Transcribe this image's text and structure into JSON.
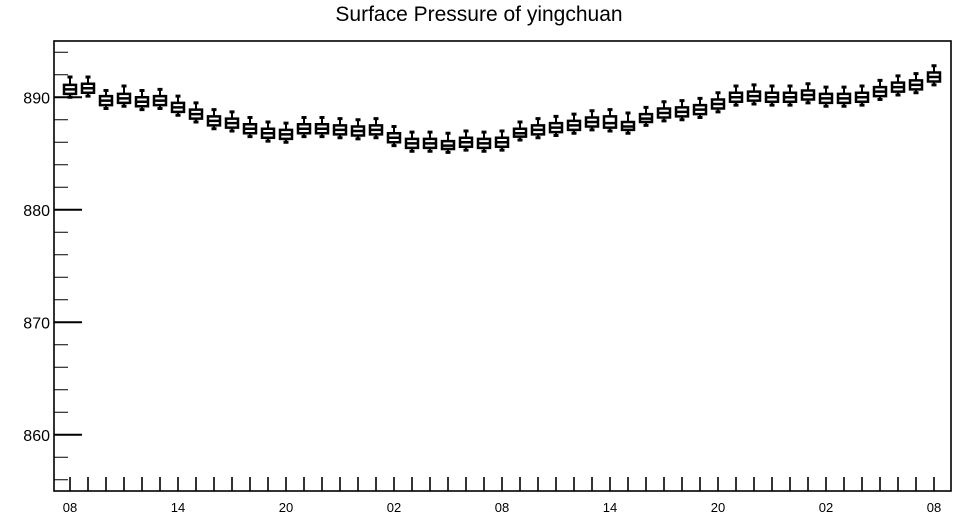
{
  "chart_data": {
    "type": "boxplot",
    "title": "Surface Pressure of yingchuan",
    "xlabel": "",
    "ylabel": "",
    "ylim": [
      855,
      895
    ],
    "yticks": [
      860,
      870,
      880,
      890
    ],
    "xtick_labels": [
      "08",
      "14",
      "20",
      "02",
      "08",
      "14",
      "20",
      "02",
      "08"
    ],
    "x_hours": [
      0,
      48
    ],
    "series": [
      {
        "values": [
          {
            "hour": 0,
            "min": 890.0,
            "q1": 890.3,
            "median": 890.7,
            "q3": 891.1,
            "max": 891.8
          },
          {
            "hour": 1,
            "min": 890.1,
            "q1": 890.4,
            "median": 890.8,
            "q3": 891.2,
            "max": 891.8
          },
          {
            "hour": 2,
            "min": 889.0,
            "q1": 889.3,
            "median": 889.7,
            "q3": 890.1,
            "max": 890.6
          },
          {
            "hour": 3,
            "min": 889.2,
            "q1": 889.5,
            "median": 889.9,
            "q3": 890.3,
            "max": 891.0
          },
          {
            "hour": 4,
            "min": 888.9,
            "q1": 889.2,
            "median": 889.6,
            "q3": 890.0,
            "max": 890.6
          },
          {
            "hour": 5,
            "min": 889.0,
            "q1": 889.3,
            "median": 889.7,
            "q3": 890.1,
            "max": 890.7
          },
          {
            "hour": 6,
            "min": 888.4,
            "q1": 888.7,
            "median": 889.1,
            "q3": 889.5,
            "max": 890.1
          },
          {
            "hour": 7,
            "min": 887.8,
            "q1": 888.1,
            "median": 888.5,
            "q3": 888.9,
            "max": 889.5
          },
          {
            "hour": 8,
            "min": 887.2,
            "q1": 887.5,
            "median": 887.9,
            "q3": 888.3,
            "max": 888.9
          },
          {
            "hour": 9,
            "min": 887.0,
            "q1": 887.3,
            "median": 887.7,
            "q3": 888.1,
            "max": 888.7
          },
          {
            "hour": 10,
            "min": 886.5,
            "q1": 886.8,
            "median": 887.2,
            "q3": 887.6,
            "max": 888.2
          },
          {
            "hour": 11,
            "min": 886.1,
            "q1": 886.4,
            "median": 886.8,
            "q3": 887.2,
            "max": 887.8
          },
          {
            "hour": 12,
            "min": 886.0,
            "q1": 886.3,
            "median": 886.7,
            "q3": 887.1,
            "max": 887.7
          },
          {
            "hour": 13,
            "min": 886.5,
            "q1": 886.8,
            "median": 887.2,
            "q3": 887.6,
            "max": 888.2
          },
          {
            "hour": 14,
            "min": 886.5,
            "q1": 886.8,
            "median": 887.2,
            "q3": 887.6,
            "max": 888.2
          },
          {
            "hour": 15,
            "min": 886.4,
            "q1": 886.7,
            "median": 887.1,
            "q3": 887.5,
            "max": 888.1
          },
          {
            "hour": 16,
            "min": 886.3,
            "q1": 886.6,
            "median": 887.0,
            "q3": 887.4,
            "max": 888.0
          },
          {
            "hour": 17,
            "min": 886.4,
            "q1": 886.7,
            "median": 887.1,
            "q3": 887.5,
            "max": 888.1
          },
          {
            "hour": 18,
            "min": 885.7,
            "q1": 886.0,
            "median": 886.4,
            "q3": 886.8,
            "max": 887.4
          },
          {
            "hour": 19,
            "min": 885.2,
            "q1": 885.5,
            "median": 885.9,
            "q3": 886.3,
            "max": 886.9
          },
          {
            "hour": 20,
            "min": 885.2,
            "q1": 885.5,
            "median": 885.9,
            "q3": 886.3,
            "max": 886.9
          },
          {
            "hour": 21,
            "min": 885.1,
            "q1": 885.4,
            "median": 885.7,
            "q3": 886.1,
            "max": 886.8
          },
          {
            "hour": 22,
            "min": 885.3,
            "q1": 885.6,
            "median": 886.0,
            "q3": 886.4,
            "max": 887.0
          },
          {
            "hour": 23,
            "min": 885.2,
            "q1": 885.5,
            "median": 885.9,
            "q3": 886.3,
            "max": 886.9
          },
          {
            "hour": 24,
            "min": 885.3,
            "q1": 885.6,
            "median": 886.0,
            "q3": 886.4,
            "max": 887.0
          },
          {
            "hour": 25,
            "min": 886.2,
            "q1": 886.5,
            "median": 886.8,
            "q3": 887.2,
            "max": 887.8
          },
          {
            "hour": 26,
            "min": 886.4,
            "q1": 886.7,
            "median": 887.1,
            "q3": 887.5,
            "max": 888.1
          },
          {
            "hour": 27,
            "min": 886.6,
            "q1": 886.9,
            "median": 887.3,
            "q3": 887.7,
            "max": 888.3
          },
          {
            "hour": 28,
            "min": 886.8,
            "q1": 887.1,
            "median": 887.5,
            "q3": 887.9,
            "max": 888.5
          },
          {
            "hour": 29,
            "min": 887.1,
            "q1": 887.4,
            "median": 887.8,
            "q3": 888.2,
            "max": 888.8
          },
          {
            "hour": 30,
            "min": 887.0,
            "q1": 887.3,
            "median": 887.7,
            "q3": 888.3,
            "max": 888.9
          },
          {
            "hour": 31,
            "min": 886.8,
            "q1": 887.1,
            "median": 887.4,
            "q3": 887.8,
            "max": 888.6
          },
          {
            "hour": 32,
            "min": 887.5,
            "q1": 887.8,
            "median": 888.1,
            "q3": 888.5,
            "max": 889.1
          },
          {
            "hour": 33,
            "min": 887.9,
            "q1": 888.2,
            "median": 888.6,
            "q3": 889.0,
            "max": 889.6
          },
          {
            "hour": 34,
            "min": 888.0,
            "q1": 888.3,
            "median": 888.7,
            "q3": 889.1,
            "max": 889.7
          },
          {
            "hour": 35,
            "min": 888.2,
            "q1": 888.5,
            "median": 888.9,
            "q3": 889.3,
            "max": 889.9
          },
          {
            "hour": 36,
            "min": 888.7,
            "q1": 889.0,
            "median": 889.4,
            "q3": 889.8,
            "max": 890.4
          },
          {
            "hour": 37,
            "min": 889.3,
            "q1": 889.6,
            "median": 890.0,
            "q3": 890.4,
            "max": 891.0
          },
          {
            "hour": 38,
            "min": 889.4,
            "q1": 889.7,
            "median": 890.1,
            "q3": 890.5,
            "max": 891.1
          },
          {
            "hour": 39,
            "min": 889.3,
            "q1": 889.6,
            "median": 890.0,
            "q3": 890.4,
            "max": 891.0
          },
          {
            "hour": 40,
            "min": 889.3,
            "q1": 889.6,
            "median": 890.0,
            "q3": 890.4,
            "max": 891.0
          },
          {
            "hour": 41,
            "min": 889.5,
            "q1": 889.8,
            "median": 890.2,
            "q3": 890.6,
            "max": 891.2
          },
          {
            "hour": 42,
            "min": 889.2,
            "q1": 889.5,
            "median": 889.9,
            "q3": 890.3,
            "max": 890.9
          },
          {
            "hour": 43,
            "min": 889.2,
            "q1": 889.5,
            "median": 889.9,
            "q3": 890.3,
            "max": 890.9
          },
          {
            "hour": 44,
            "min": 889.3,
            "q1": 889.6,
            "median": 890.0,
            "q3": 890.4,
            "max": 891.0
          },
          {
            "hour": 45,
            "min": 889.8,
            "q1": 890.1,
            "median": 890.5,
            "q3": 890.9,
            "max": 891.5
          },
          {
            "hour": 46,
            "min": 890.2,
            "q1": 890.5,
            "median": 890.9,
            "q3": 891.3,
            "max": 891.9
          },
          {
            "hour": 47,
            "min": 890.4,
            "q1": 890.7,
            "median": 891.1,
            "q3": 891.5,
            "max": 892.1
          },
          {
            "hour": 48,
            "min": 891.1,
            "q1": 891.4,
            "median": 891.8,
            "q3": 892.2,
            "max": 892.8
          }
        ]
      }
    ]
  }
}
